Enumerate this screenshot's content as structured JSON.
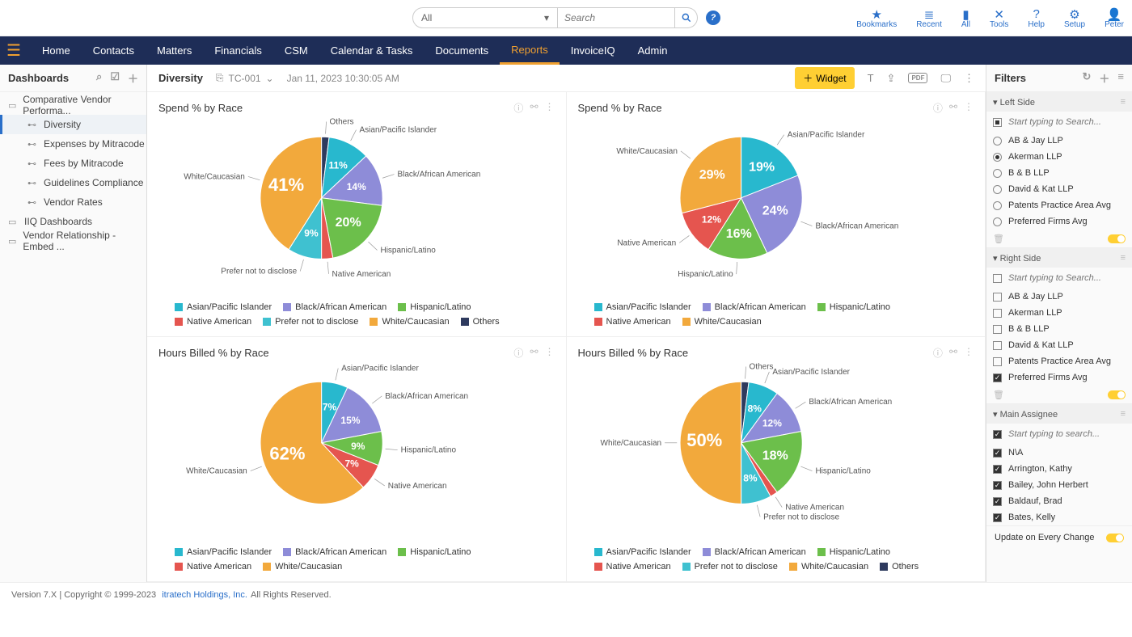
{
  "top": {
    "search_filter": "All",
    "search_placeholder": "Search",
    "icons": [
      {
        "glyph": "★",
        "label": "Bookmarks"
      },
      {
        "glyph": "≣",
        "label": "Recent"
      },
      {
        "glyph": "▮",
        "label": "All"
      },
      {
        "glyph": "✕",
        "label": "Tools"
      },
      {
        "glyph": "?",
        "label": "Help"
      },
      {
        "glyph": "⚙",
        "label": "Setup"
      },
      {
        "glyph": "👤",
        "label": "Peter"
      }
    ]
  },
  "nav": [
    "Home",
    "Contacts",
    "Matters",
    "Financials",
    "CSM",
    "Calendar & Tasks",
    "Documents",
    "Reports",
    "InvoiceIQ",
    "Admin"
  ],
  "nav_active": 7,
  "left": {
    "title": "Dashboards",
    "tree": [
      {
        "label": "Comparative Vendor Performa...",
        "child": false
      },
      {
        "label": "Diversity",
        "child": true,
        "active": true
      },
      {
        "label": "Expenses by Mitracode",
        "child": true
      },
      {
        "label": "Fees by Mitracode",
        "child": true
      },
      {
        "label": "Guidelines Compliance",
        "child": true
      },
      {
        "label": "Vendor Rates",
        "child": true
      },
      {
        "label": "IIQ Dashboards",
        "child": false
      },
      {
        "label": "Vendor Relationship - Embed ...",
        "child": false
      }
    ]
  },
  "main": {
    "title": "Diversity",
    "code": "TC-001",
    "timestamp": "Jan 11, 2023 10:30:05 AM",
    "widget_btn": "Widget"
  },
  "colors": {
    "asian": "#28b8ce",
    "black": "#8e8cd8",
    "hispanic": "#6cbf4b",
    "native": "#e5554f",
    "prefer": "#3fc1d0",
    "white": "#f2a93c",
    "others": "#2e3a5e"
  },
  "charts": [
    {
      "title": "Spend % by Race",
      "slices": [
        {
          "label": "Others",
          "pct": 2,
          "key": "others",
          "showPct": false
        },
        {
          "label": "Asian/Pacific Islander",
          "pct": 11,
          "key": "asian",
          "showPct": true
        },
        {
          "label": "Black/African American",
          "pct": 14,
          "key": "black",
          "showPct": true
        },
        {
          "label": "Hispanic/Latino",
          "pct": 20,
          "key": "hispanic",
          "showPct": true
        },
        {
          "label": "Native American",
          "pct": 3,
          "key": "native",
          "showPct": false
        },
        {
          "label": "Prefer not to disclose",
          "pct": 9,
          "key": "prefer",
          "showPct": true
        },
        {
          "label": "White/Caucasian",
          "pct": 41,
          "key": "white",
          "showPct": true
        }
      ],
      "legend": [
        "asian",
        "black",
        "hispanic",
        "native",
        "prefer",
        "white",
        "others"
      ]
    },
    {
      "title": "Spend % by Race",
      "slices": [
        {
          "label": "Asian/Pacific Islander",
          "pct": 19,
          "key": "asian",
          "showPct": true
        },
        {
          "label": "Black/African American",
          "pct": 24,
          "key": "black",
          "showPct": true
        },
        {
          "label": "Hispanic/Latino",
          "pct": 16,
          "key": "hispanic",
          "showPct": true
        },
        {
          "label": "Native American",
          "pct": 12,
          "key": "native",
          "showPct": true
        },
        {
          "label": "White/Caucasian",
          "pct": 29,
          "key": "white",
          "showPct": true
        }
      ],
      "legend": [
        "asian",
        "black",
        "hispanic",
        "native",
        "white"
      ]
    },
    {
      "title": "Hours Billed % by Race",
      "slices": [
        {
          "label": "Asian/Pacific Islander",
          "pct": 7,
          "key": "asian",
          "showPct": true
        },
        {
          "label": "Black/African American",
          "pct": 15,
          "key": "black",
          "showPct": true
        },
        {
          "label": "Hispanic/Latino",
          "pct": 9,
          "key": "hispanic",
          "showPct": true
        },
        {
          "label": "Native American",
          "pct": 7,
          "key": "native",
          "showPct": true
        },
        {
          "label": "White/Caucasian",
          "pct": 62,
          "key": "white",
          "showPct": true
        }
      ],
      "legend": [
        "asian",
        "black",
        "hispanic",
        "native",
        "white"
      ]
    },
    {
      "title": "Hours Billed % by Race",
      "slices": [
        {
          "label": "Others",
          "pct": 2,
          "key": "others",
          "showPct": false
        },
        {
          "label": "Asian/Pacific Islander",
          "pct": 8,
          "key": "asian",
          "showPct": true
        },
        {
          "label": "Black/African American",
          "pct": 12,
          "key": "black",
          "showPct": true
        },
        {
          "label": "Hispanic/Latino",
          "pct": 18,
          "key": "hispanic",
          "showPct": true
        },
        {
          "label": "Native American",
          "pct": 2,
          "key": "native",
          "showPct": false
        },
        {
          "label": "Prefer not to disclose",
          "pct": 8,
          "key": "prefer",
          "showPct": true
        },
        {
          "label": "White/Caucasian",
          "pct": 50,
          "key": "white",
          "showPct": true
        }
      ],
      "legend": [
        "asian",
        "black",
        "hispanic",
        "native",
        "prefer",
        "white",
        "others"
      ]
    }
  ],
  "legend_labels": {
    "asian": "Asian/Pacific Islander",
    "black": "Black/African American",
    "hispanic": "Hispanic/Latino",
    "native": "Native American",
    "prefer": "Prefer not to disclose",
    "white": "White/Caucasian",
    "others": "Others"
  },
  "filters": {
    "title": "Filters",
    "left": {
      "title": "Left Side",
      "search": "Start typing to Search...",
      "type": "radio",
      "items": [
        {
          "label": "AB & Jay LLP",
          "sel": false
        },
        {
          "label": "Akerman LLP",
          "sel": true
        },
        {
          "label": "B & B LLP",
          "sel": false
        },
        {
          "label": "David & Kat LLP",
          "sel": false
        },
        {
          "label": "Patents Practice Area Avg",
          "sel": false
        },
        {
          "label": "Preferred Firms Avg",
          "sel": false
        }
      ]
    },
    "right": {
      "title": "Right Side",
      "search": "Start typing to Search...",
      "type": "check",
      "items": [
        {
          "label": "AB & Jay LLP",
          "sel": false
        },
        {
          "label": "Akerman LLP",
          "sel": false
        },
        {
          "label": "B & B LLP",
          "sel": false
        },
        {
          "label": "David & Kat LLP",
          "sel": false
        },
        {
          "label": "Patents Practice Area Avg",
          "sel": false
        },
        {
          "label": "Preferred Firms Avg",
          "sel": true
        }
      ]
    },
    "assignee": {
      "title": "Main Assignee",
      "search": "Start typing to search...",
      "type": "check",
      "items": [
        {
          "label": "N\\A",
          "sel": true
        },
        {
          "label": "Arrington, Kathy",
          "sel": true
        },
        {
          "label": "Bailey, John Herbert",
          "sel": true
        },
        {
          "label": "Baldauf, Brad",
          "sel": true
        },
        {
          "label": "Bates, Kelly",
          "sel": true
        }
      ]
    },
    "update": "Update on Every Change"
  },
  "footer": {
    "version": "Version 7.X | Copyright © 1999-2023",
    "company": "itratech Holdings, Inc.",
    "rights": "All Rights Reserved."
  }
}
